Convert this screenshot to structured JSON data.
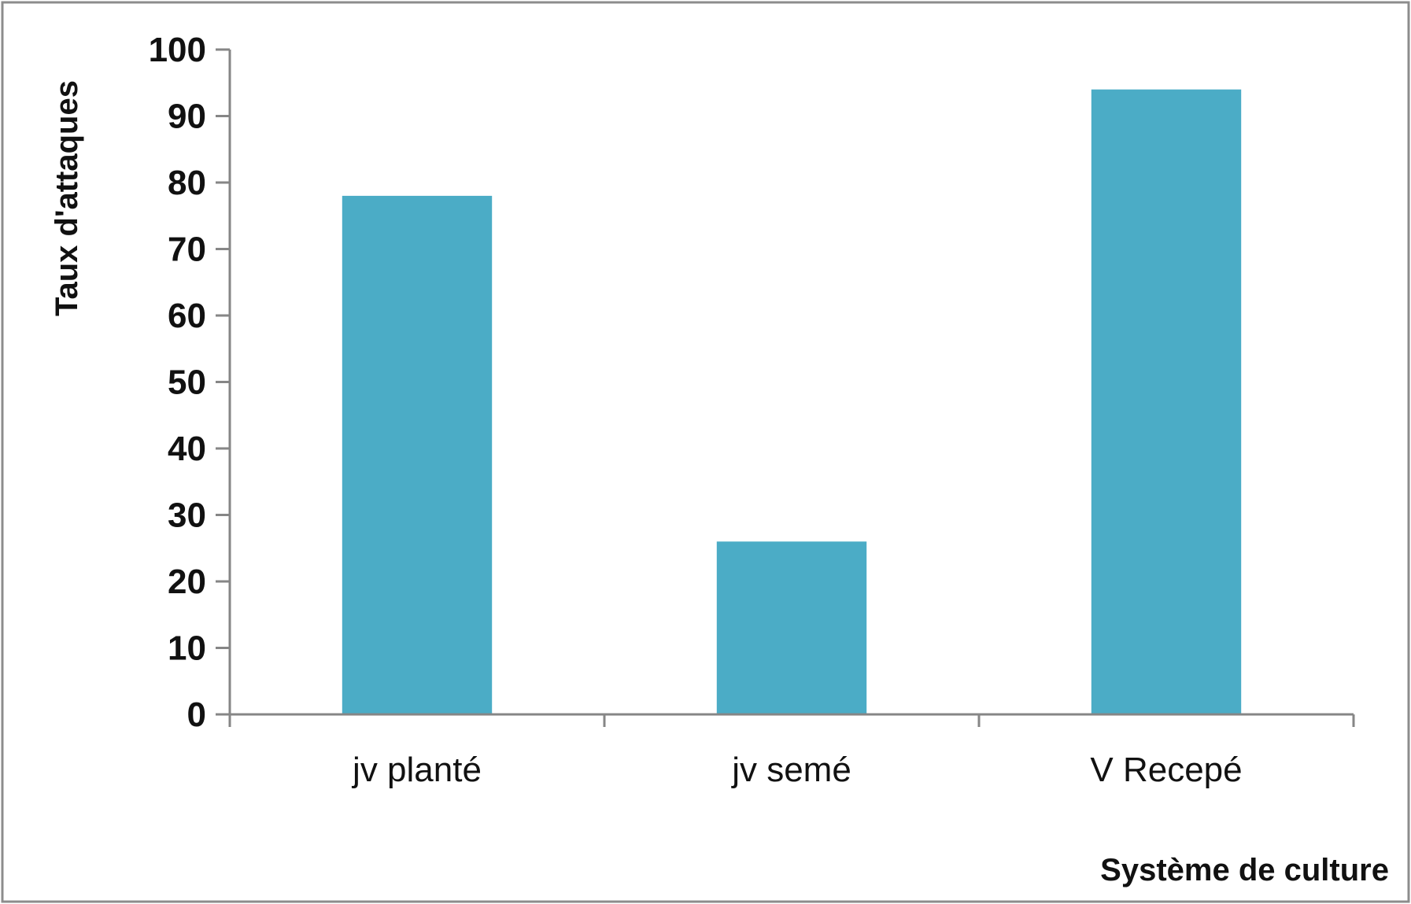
{
  "chart_data": {
    "type": "bar",
    "categories": [
      "jv planté",
      "jv semé",
      "V Recepé"
    ],
    "values": [
      78,
      26,
      94
    ],
    "title": "",
    "xlabel": "Système de culture",
    "ylabel": "Taux d'attaques",
    "ylim": [
      0,
      100
    ],
    "yticks": [
      "0",
      "10",
      "20",
      "30",
      "40",
      "50",
      "60",
      "70",
      "80",
      "90",
      "100"
    ],
    "grid": false,
    "legend": "none",
    "bar_color": "#4BACC6",
    "axis_color": "#868686",
    "frame_color": "#8C8C8C"
  }
}
